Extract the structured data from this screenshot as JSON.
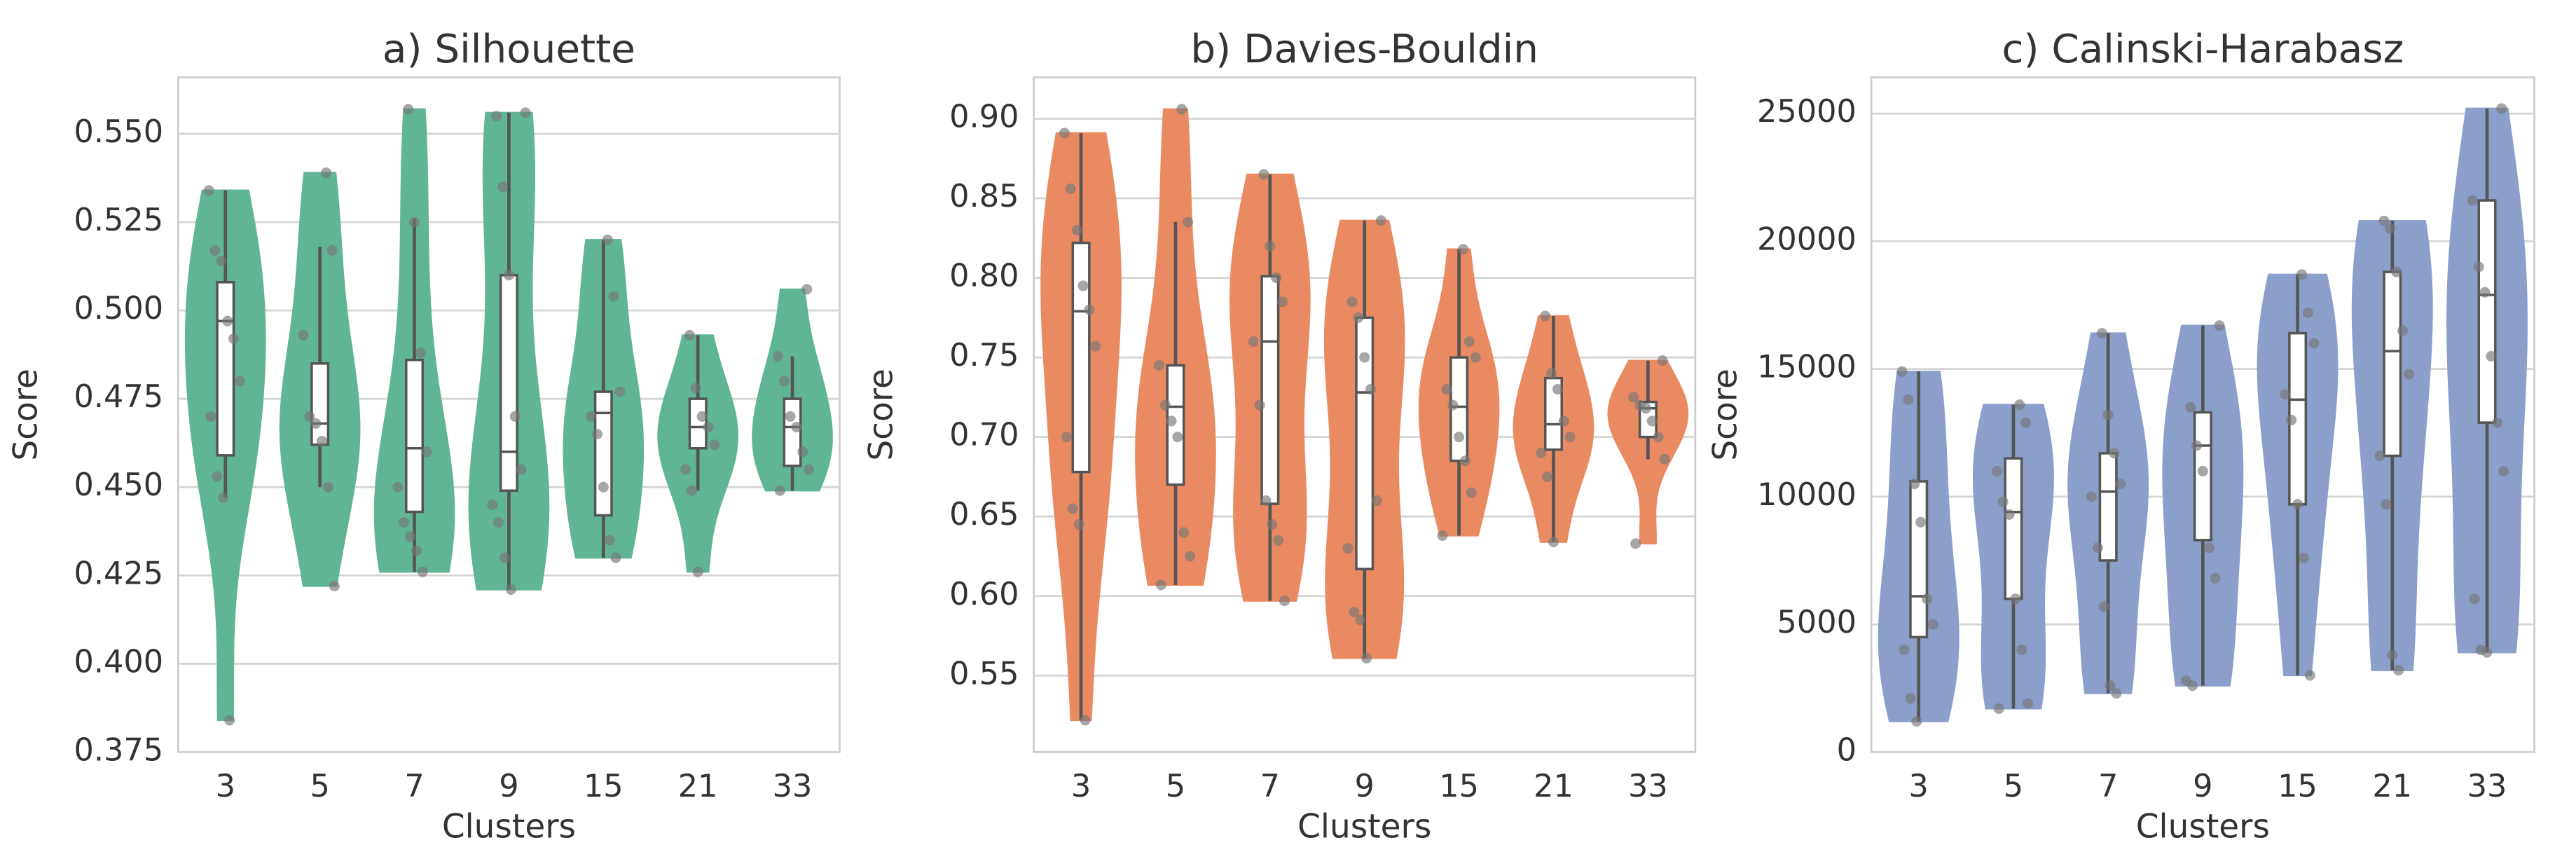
{
  "chart_data": [
    {
      "type": "violin",
      "title": "a) Silhouette",
      "x_label": "Clusters",
      "y_label": "Score",
      "color": "#5fb594",
      "grid": true,
      "categories": [
        "3",
        "5",
        "7",
        "9",
        "15",
        "21",
        "33"
      ],
      "ylim": [
        0.375,
        0.566
      ],
      "yticks": [
        0.375,
        {
          "value": 0.4,
          "label": "0.400"
        },
        0.425,
        {
          "value": 0.45,
          "label": "0.450"
        },
        0.475,
        {
          "value": 0.5,
          "label": "0.500"
        },
        0.525,
        {
          "value": 0.55,
          "label": "0.550"
        }
      ],
      "box": {
        "min": [
          0.447,
          0.45,
          0.426,
          0.421,
          0.43,
          0.449,
          0.449
        ],
        "q1": [
          0.459,
          0.462,
          0.443,
          0.449,
          0.442,
          0.461,
          0.456
        ],
        "median": [
          0.497,
          0.468,
          0.461,
          0.46,
          0.471,
          0.467,
          0.467
        ],
        "q3": [
          0.508,
          0.485,
          0.486,
          0.51,
          0.477,
          0.475,
          0.475
        ],
        "max": [
          0.534,
          0.518,
          0.526,
          0.556,
          0.52,
          0.493,
          0.487
        ]
      },
      "points": [
        [
          0.534,
          0.517,
          0.514,
          0.497,
          0.492,
          0.48,
          0.47,
          0.453,
          0.447,
          0.384
        ],
        [
          0.539,
          0.517,
          0.493,
          0.47,
          0.468,
          0.463,
          0.45,
          0.422
        ],
        [
          0.557,
          0.525,
          0.488,
          0.46,
          0.45,
          0.44,
          0.436,
          0.432,
          0.426
        ],
        [
          0.556,
          0.555,
          0.535,
          0.51,
          0.47,
          0.455,
          0.445,
          0.44,
          0.43,
          0.421
        ],
        [
          0.52,
          0.504,
          0.477,
          0.47,
          0.465,
          0.45,
          0.435,
          0.43
        ],
        [
          0.493,
          0.478,
          0.47,
          0.467,
          0.462,
          0.455,
          0.449,
          0.426
        ],
        [
          0.506,
          0.487,
          0.48,
          0.47,
          0.467,
          0.46,
          0.455,
          0.449
        ]
      ]
    },
    {
      "type": "violin",
      "title": "b) Davies-Bouldin",
      "x_label": "Clusters",
      "y_label": "Score",
      "color": "#ea8a62",
      "grid": true,
      "categories": [
        "3",
        "5",
        "7",
        "9",
        "15",
        "21",
        "33"
      ],
      "ylim": [
        0.502,
        0.926
      ],
      "yticks": [
        0.55,
        {
          "value": 0.6,
          "label": "0.60"
        },
        0.65,
        {
          "value": 0.7,
          "label": "0.70"
        },
        0.75,
        {
          "value": 0.8,
          "label": "0.80"
        },
        0.85,
        {
          "value": 0.9,
          "label": "0.90"
        }
      ],
      "box": {
        "min": [
          0.522,
          0.607,
          0.597,
          0.561,
          0.638,
          0.634,
          0.686
        ],
        "q1": [
          0.678,
          0.67,
          0.658,
          0.617,
          0.685,
          0.692,
          0.7
        ],
        "median": [
          0.779,
          0.719,
          0.76,
          0.728,
          0.719,
          0.708,
          0.718
        ],
        "q3": [
          0.822,
          0.745,
          0.801,
          0.775,
          0.75,
          0.737,
          0.722
        ],
        "max": [
          0.891,
          0.835,
          0.865,
          0.836,
          0.818,
          0.776,
          0.748
        ]
      },
      "points": [
        [
          0.891,
          0.856,
          0.83,
          0.795,
          0.78,
          0.757,
          0.7,
          0.655,
          0.645,
          0.522
        ],
        [
          0.906,
          0.835,
          0.745,
          0.72,
          0.71,
          0.7,
          0.64,
          0.625,
          0.607
        ],
        [
          0.865,
          0.82,
          0.8,
          0.785,
          0.76,
          0.72,
          0.66,
          0.645,
          0.635,
          0.597
        ],
        [
          0.836,
          0.785,
          0.775,
          0.75,
          0.73,
          0.66,
          0.63,
          0.59,
          0.585,
          0.561
        ],
        [
          0.818,
          0.76,
          0.75,
          0.73,
          0.72,
          0.7,
          0.685,
          0.665,
          0.638
        ],
        [
          0.776,
          0.74,
          0.73,
          0.71,
          0.7,
          0.69,
          0.675,
          0.634
        ],
        [
          0.748,
          0.725,
          0.72,
          0.718,
          0.71,
          0.7,
          0.686,
          0.633
        ]
      ]
    },
    {
      "type": "violin",
      "title": "c) Calinski-Harabasz",
      "x_label": "Clusters",
      "y_label": "Score",
      "color": "#8c9fcb",
      "grid": true,
      "categories": [
        "3",
        "5",
        "7",
        "9",
        "15",
        "21",
        "33"
      ],
      "ylim": [
        0,
        26420
      ],
      "yticks": [
        0,
        5000,
        10000,
        15000,
        20000,
        25000
      ],
      "box": {
        "min": [
          1200,
          1700,
          2300,
          2600,
          3000,
          3200,
          3900
        ],
        "q1": [
          4500,
          6000,
          7500,
          8300,
          9700,
          11600,
          12900
        ],
        "median": [
          6100,
          9400,
          10200,
          12000,
          13800,
          15700,
          17900
        ],
        "q3": [
          10600,
          11500,
          11700,
          13300,
          16400,
          18800,
          21600
        ],
        "max": [
          14900,
          13600,
          16400,
          16700,
          18700,
          20800,
          25200
        ]
      },
      "points": [
        [
          14900,
          13800,
          10500,
          9000,
          6000,
          5000,
          4000,
          2100,
          1200
        ],
        [
          13600,
          12900,
          11000,
          9800,
          9300,
          6000,
          4000,
          1900,
          1700
        ],
        [
          16400,
          13200,
          11700,
          10500,
          10000,
          8000,
          5700,
          2600,
          2300
        ],
        [
          16700,
          13500,
          12000,
          11000,
          8000,
          6800,
          2800,
          2600
        ],
        [
          18700,
          17200,
          16000,
          14000,
          13000,
          9700,
          7600,
          3000
        ],
        [
          20800,
          20500,
          18800,
          16500,
          14800,
          11600,
          9700,
          3800,
          3200
        ],
        [
          25200,
          21600,
          19000,
          18000,
          15500,
          12900,
          11000,
          6000,
          4000,
          3900
        ]
      ]
    }
  ]
}
